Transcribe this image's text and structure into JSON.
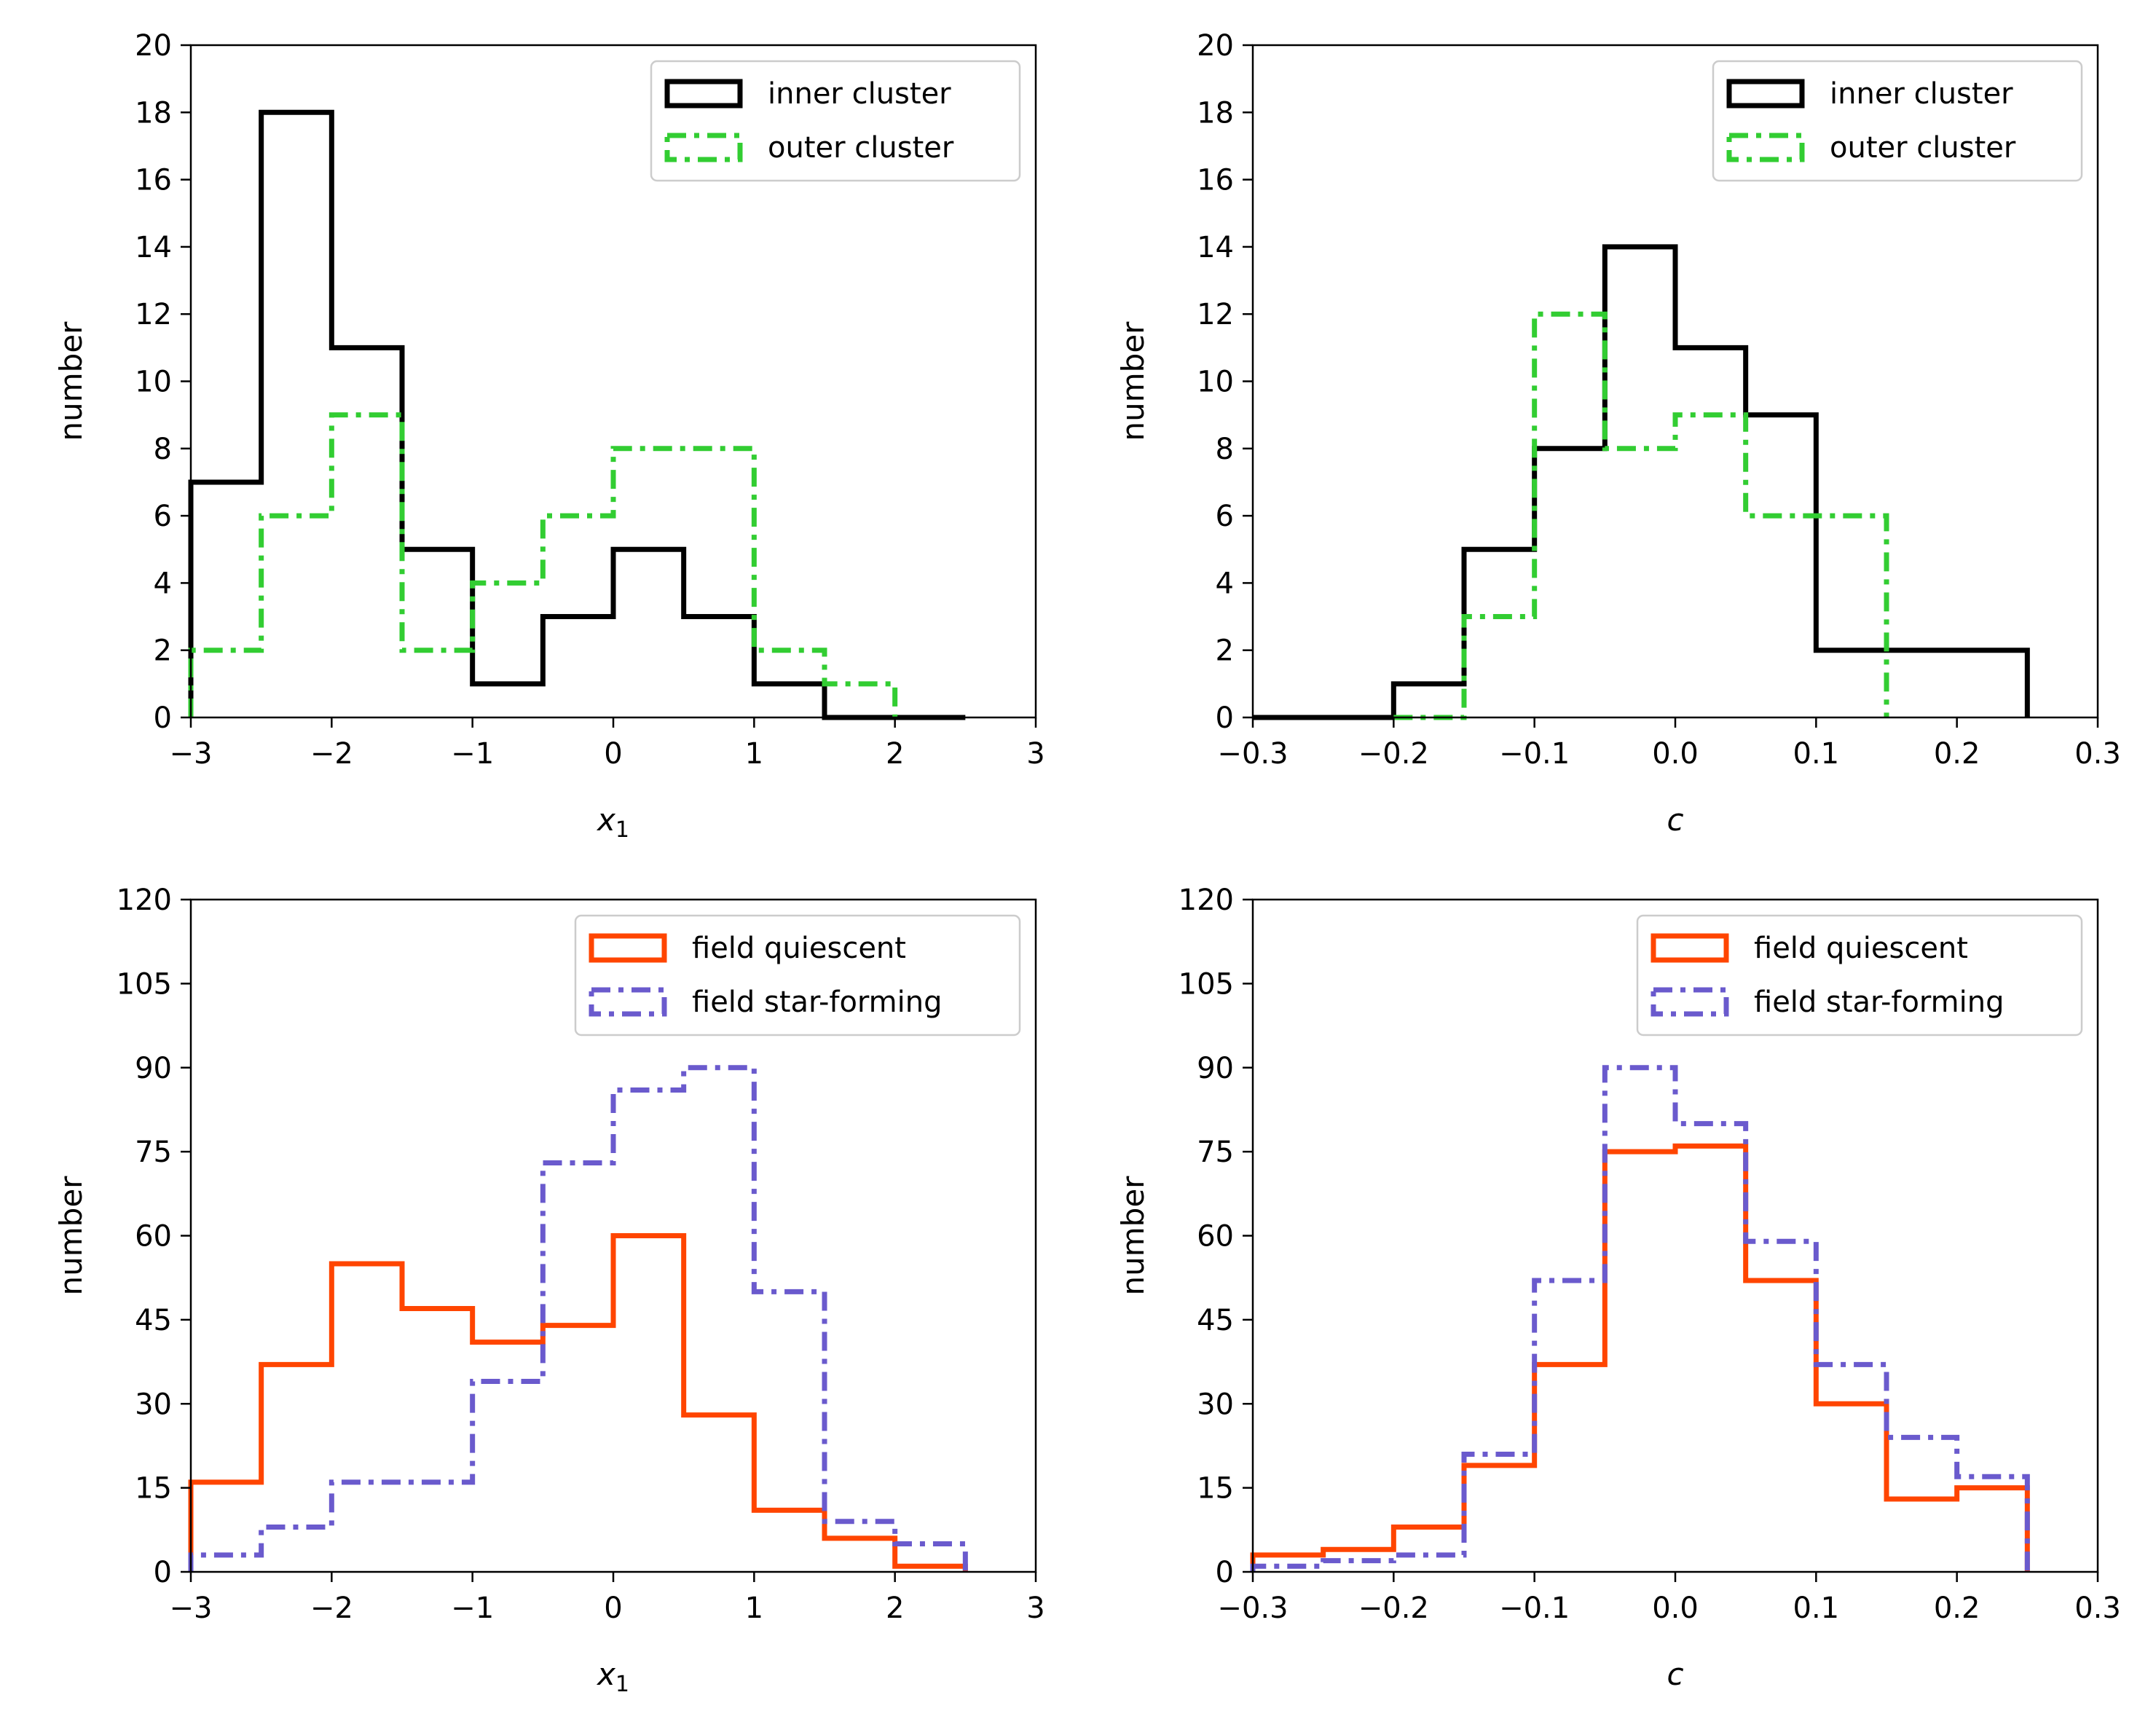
{
  "chart_data": [
    {
      "type": "histogram",
      "id": "x1-cluster",
      "xlabel": "x_1",
      "ylabel": "number",
      "xlim": [
        -3,
        3
      ],
      "ylim": [
        0,
        20
      ],
      "xticks": [
        -3,
        -2,
        -1,
        0,
        1,
        2,
        3
      ],
      "yticks": [
        0,
        2,
        4,
        6,
        8,
        10,
        12,
        14,
        16,
        18,
        20
      ],
      "bin_edges": [
        -3,
        -2.5,
        -2,
        -1.5,
        -1,
        -0.5,
        0,
        0.5,
        1,
        1.5,
        2,
        2.5
      ],
      "legend_position": "top-right",
      "series": [
        {
          "name": "inner cluster",
          "style": "solid",
          "color": "#000000",
          "values": [
            7,
            18,
            11,
            5,
            1,
            3,
            5,
            3,
            1,
            0,
            0
          ]
        },
        {
          "name": "outer cluster",
          "style": "dashdot",
          "color": "#32cd32",
          "values": [
            2,
            6,
            9,
            2,
            4,
            6,
            8,
            8,
            2,
            1,
            null
          ]
        }
      ]
    },
    {
      "type": "histogram",
      "id": "c-cluster",
      "xlabel": "c",
      "ylabel": "number",
      "xlim": [
        -0.3,
        0.3
      ],
      "ylim": [
        0,
        20
      ],
      "xticks": [
        -0.3,
        -0.2,
        -0.1,
        0.0,
        0.1,
        0.2,
        0.3
      ],
      "yticks": [
        0,
        2,
        4,
        6,
        8,
        10,
        12,
        14,
        16,
        18,
        20
      ],
      "bin_edges": [
        -0.3,
        -0.25,
        -0.2,
        -0.15,
        -0.1,
        -0.05,
        0.0,
        0.05,
        0.1,
        0.15,
        0.2,
        0.25
      ],
      "legend_position": "top-right",
      "series": [
        {
          "name": "inner cluster",
          "style": "solid",
          "color": "#000000",
          "values": [
            0,
            0,
            1,
            5,
            8,
            14,
            11,
            9,
            2,
            2,
            2
          ]
        },
        {
          "name": "outer cluster",
          "style": "dashdot",
          "color": "#32cd32",
          "values": [
            null,
            null,
            0,
            3,
            12,
            8,
            9,
            6,
            6,
            null,
            null
          ]
        }
      ]
    },
    {
      "type": "histogram",
      "id": "x1-field",
      "xlabel": "x_1",
      "ylabel": "number",
      "xlim": [
        -3,
        3
      ],
      "ylim": [
        0,
        120
      ],
      "xticks": [
        -3,
        -2,
        -1,
        0,
        1,
        2,
        3
      ],
      "yticks": [
        0,
        15,
        30,
        45,
        60,
        75,
        90,
        105,
        120
      ],
      "bin_edges": [
        -3,
        -2.5,
        -2,
        -1.5,
        -1,
        -0.5,
        0,
        0.5,
        1,
        1.5,
        2,
        2.5
      ],
      "legend_position": "top-right",
      "series": [
        {
          "name": "field quiescent",
          "style": "solid",
          "color": "#ff4500",
          "values": [
            16,
            37,
            55,
            47,
            41,
            44,
            60,
            28,
            11,
            6,
            1
          ]
        },
        {
          "name": "field star-forming",
          "style": "dashdot",
          "color": "#6a5acd",
          "values": [
            3,
            8,
            16,
            16,
            34,
            73,
            86,
            90,
            50,
            9,
            5
          ]
        }
      ]
    },
    {
      "type": "histogram",
      "id": "c-field",
      "xlabel": "c",
      "ylabel": "number",
      "xlim": [
        -0.3,
        0.3
      ],
      "ylim": [
        0,
        120
      ],
      "xticks": [
        -0.3,
        -0.2,
        -0.1,
        0.0,
        0.1,
        0.2,
        0.3
      ],
      "yticks": [
        0,
        15,
        30,
        45,
        60,
        75,
        90,
        105,
        120
      ],
      "bin_edges": [
        -0.3,
        -0.25,
        -0.2,
        -0.15,
        -0.1,
        -0.05,
        0.0,
        0.05,
        0.1,
        0.15,
        0.2,
        0.25
      ],
      "legend_position": "top-right",
      "series": [
        {
          "name": "field quiescent",
          "style": "solid",
          "color": "#ff4500",
          "values": [
            3,
            4,
            8,
            19,
            37,
            75,
            76,
            52,
            30,
            13,
            15
          ]
        },
        {
          "name": "field star-forming",
          "style": "dashdot",
          "color": "#6a5acd",
          "values": [
            1,
            2,
            3,
            21,
            52,
            90,
            80,
            59,
            37,
            24,
            17
          ]
        }
      ]
    }
  ]
}
